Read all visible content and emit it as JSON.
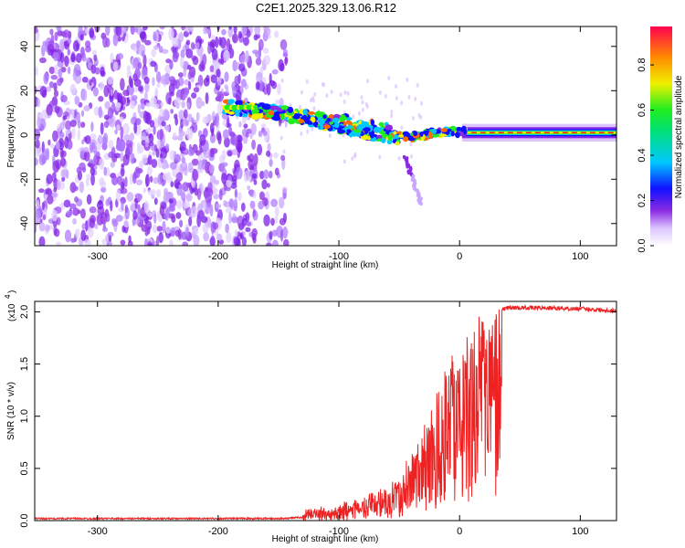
{
  "chart_data": [
    {
      "type": "heatmap",
      "title": "C2E1.2025.329.13.06.R12",
      "xlabel": "Height of straight line (km)",
      "ylabel": "Frequency (Hz)",
      "xlim": [
        -352,
        130
      ],
      "ylim": [
        -50,
        49
      ],
      "xticks": [
        -300,
        -200,
        -100,
        0,
        100
      ],
      "yticks": [
        -40,
        -20,
        0,
        20,
        40
      ],
      "colorbar": {
        "label": "Normalized spectral amplitude",
        "range": [
          0.0,
          0.97
        ],
        "ticks": [
          0.0,
          0.2,
          0.4,
          0.6,
          0.8
        ],
        "tick_labels": [
          "0.0",
          "0.2",
          "0.4",
          "0.6",
          "0.8"
        ]
      },
      "features": {
        "noise_region_x": [
          -352,
          -148
        ],
        "signal_track": [
          {
            "x": -195,
            "freq": 12.5
          },
          {
            "x": -150,
            "freq": 10
          },
          {
            "x": -120,
            "freq": 7
          },
          {
            "x": -90,
            "freq": 4
          },
          {
            "x": -60,
            "freq": 1
          },
          {
            "x": -40,
            "freq": -1
          },
          {
            "x": -20,
            "freq": 1
          },
          {
            "x": 0,
            "freq": 1.5
          },
          {
            "x": 130,
            "freq": 0.5
          }
        ],
        "tail": [
          {
            "x": -45,
            "freq": -10
          },
          {
            "x": -32,
            "freq": -31
          }
        ]
      }
    },
    {
      "type": "line",
      "xlabel": "Height of straight line (km)",
      "ylabel": "SNR (10 * v/v)",
      "y_multiplier": "(x10",
      "y_multiplier_exp": "4",
      "xlim": [
        -352,
        130
      ],
      "ylim": [
        0,
        2.1
      ],
      "xticks": [
        -300,
        -200,
        -100,
        0,
        100
      ],
      "yticks": [
        0.0,
        0.5,
        1.0,
        1.5,
        2.0
      ],
      "ytick_labels": [
        "0.0",
        "0.5",
        "1.0",
        "1.5",
        "2.0"
      ],
      "series": [
        {
          "name": "SNR",
          "color": "#ee2222",
          "trend": {
            "x": [
              -352,
              -150,
              -130,
              -110,
              -100,
              -90,
              -80,
              -70,
              -60,
              -50,
              -40,
              -30,
              -20,
              -10,
              0,
              10,
              20,
              30,
              40,
              60,
              100,
              130
            ],
            "y": [
              0.02,
              0.02,
              0.03,
              0.08,
              0.12,
              0.15,
              0.18,
              0.22,
              0.3,
              0.42,
              0.58,
              0.85,
              1.2,
              1.5,
              1.7,
              1.85,
              1.95,
              2.0,
              2.04,
              2.04,
              2.03,
              2.01
            ]
          }
        }
      ]
    }
  ],
  "colors": {
    "frame": "#000000",
    "snr_line": "#ee2222",
    "noise": "#9a4cf0"
  }
}
